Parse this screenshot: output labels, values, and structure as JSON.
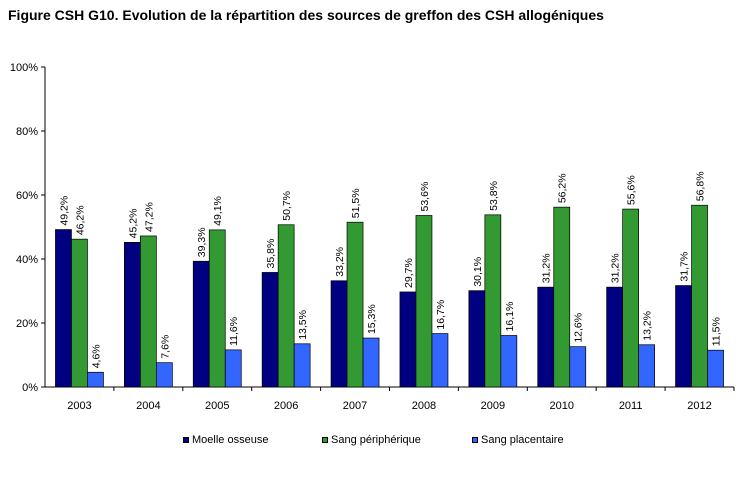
{
  "title": "Figure CSH G10. Evolution de la répartition des sources de greffon des CSH allogéniques",
  "chart_data": {
    "type": "bar",
    "categories": [
      "2003",
      "2004",
      "2005",
      "2006",
      "2007",
      "2008",
      "2009",
      "2010",
      "2011",
      "2012"
    ],
    "series": [
      {
        "name": "Moelle osseuse",
        "color": "#000080",
        "values": [
          49.2,
          45.2,
          39.3,
          35.8,
          33.2,
          29.7,
          30.1,
          31.2,
          31.2,
          31.7
        ],
        "labels": [
          "49,2%",
          "45,2%",
          "39,3%",
          "35,8%",
          "33,2%",
          "29,7%",
          "30,1%",
          "31,2%",
          "31,2%",
          "31,7%"
        ]
      },
      {
        "name": "Sang périphérique",
        "color": "#339933",
        "values": [
          46.2,
          47.2,
          49.1,
          50.7,
          51.5,
          53.6,
          53.8,
          56.2,
          55.6,
          56.8
        ],
        "labels": [
          "46,2%",
          "47,2%",
          "49,1%",
          "50,7%",
          "51,5%",
          "53,6%",
          "53,8%",
          "56,2%",
          "55,6%",
          "56,8%"
        ]
      },
      {
        "name": "Sang placentaire",
        "color": "#3366ff",
        "values": [
          4.6,
          7.6,
          11.6,
          13.5,
          15.3,
          16.7,
          16.1,
          12.6,
          13.2,
          11.5
        ],
        "labels": [
          "4,6%",
          "7,6%",
          "11,6%",
          "13,5%",
          "15,3%",
          "16,7%",
          "16,1%",
          "12,6%",
          "13,2%",
          "11,5%"
        ]
      }
    ],
    "ylim": [
      0,
      100
    ],
    "yticks": [
      0,
      20,
      40,
      60,
      80,
      100
    ],
    "ytick_labels": [
      "0%",
      "20%",
      "40%",
      "60%",
      "80%",
      "100%"
    ],
    "grid": false,
    "legend_position": "bottom"
  }
}
